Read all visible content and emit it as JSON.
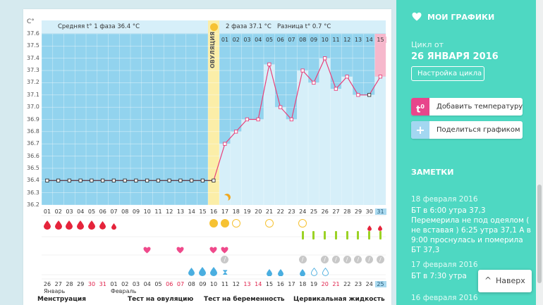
{
  "chart": {
    "y_unit": "C°",
    "phase1_label": "Средняя t° 1 фаза",
    "phase1_value": "36.4 °C",
    "ovulation_label": "ОВУЛЯЦИЯ",
    "phase2_label": "2 фаза",
    "phase2_value": "37.1 °C",
    "diff_label": "Разница t°",
    "diff_value": "0.7 °C",
    "y_ticks": [
      "37.6",
      "37.5",
      "37.4",
      "37.3",
      "37.2",
      "37.1",
      "37.0",
      "36.9",
      "36.8",
      "36.7",
      "36.6",
      "36.5",
      "36.4",
      "36.3",
      "36.2"
    ],
    "phase2_days": [
      "01",
      "02",
      "03",
      "04",
      "05",
      "06",
      "07",
      "08",
      "09",
      "10",
      "11",
      "12",
      "13",
      "14",
      "15"
    ],
    "cycle_days": [
      "01",
      "02",
      "03",
      "04",
      "05",
      "06",
      "07",
      "08",
      "09",
      "10",
      "11",
      "12",
      "13",
      "14",
      "15",
      "16",
      "17",
      "18",
      "19",
      "20",
      "21",
      "22",
      "23",
      "24",
      "25",
      "26",
      "27",
      "28",
      "29",
      "30",
      "31"
    ],
    "temperatures": [
      36.4,
      36.4,
      36.4,
      36.4,
      36.4,
      36.4,
      36.4,
      36.4,
      36.4,
      36.4,
      36.4,
      36.4,
      36.4,
      36.4,
      36.4,
      36.4,
      36.7,
      36.8,
      36.9,
      36.9,
      37.35,
      37.0,
      36.9,
      37.3,
      37.2,
      37.4,
      37.15,
      37.25,
      37.1,
      37.1,
      37.25
    ],
    "dates": [
      "26",
      "27",
      "28",
      "29",
      "30",
      "31",
      "01",
      "02",
      "03",
      "04",
      "05",
      "06",
      "07",
      "08",
      "09",
      "10",
      "11",
      "12",
      "13",
      "14",
      "15",
      "16",
      "17",
      "18",
      "19",
      "20",
      "21",
      "22",
      "23",
      "24",
      "25"
    ],
    "red_dates": [
      "30",
      "31",
      "06",
      "07",
      "13",
      "14",
      "20",
      "21"
    ],
    "month_jan": "Январь",
    "month_feb": "Февраль",
    "legend": {
      "menstruation": "Менструация",
      "ovulation_test": "Тест на овуляцию",
      "pregnancy_test": "Тест на беременность",
      "cervical_fluid": "Цервикальная жидкость"
    },
    "colors": {
      "phase1_bg": "#92d3ee",
      "phase2_bg": "#d6eff9",
      "ovulation_bg": "#fbeea8",
      "line": "#e8407a",
      "blood": "#e5243b",
      "heart": "#ef4a8b",
      "green": "#9bd225",
      "drop": "#4aaee0"
    }
  },
  "sidebar": {
    "my_charts": "МОИ ГРАФИКИ",
    "cycle_from": "Цикл от",
    "cycle_date": "26 ЯНВАРЯ 2016",
    "setup_cycle": "Настройка цикла",
    "add_temp": "Добавить температуру",
    "share_chart": "Поделиться графиком",
    "notes_title": "ЗАМЕТКИ",
    "notes": [
      {
        "date": "18 февраля 2016",
        "text": "БТ в 6:00 утра 37,3 Перемерила не под одеялом ( не вставая ) 6:25 утра 37,1 А в 9:00 проснулась и померила БТ 37,3"
      },
      {
        "date": "17 февраля 2016",
        "text": "БТ в 7:30 утра"
      },
      {
        "date": "16 февраля 2016",
        "text": ""
      }
    ],
    "back_label": "Наверх"
  }
}
